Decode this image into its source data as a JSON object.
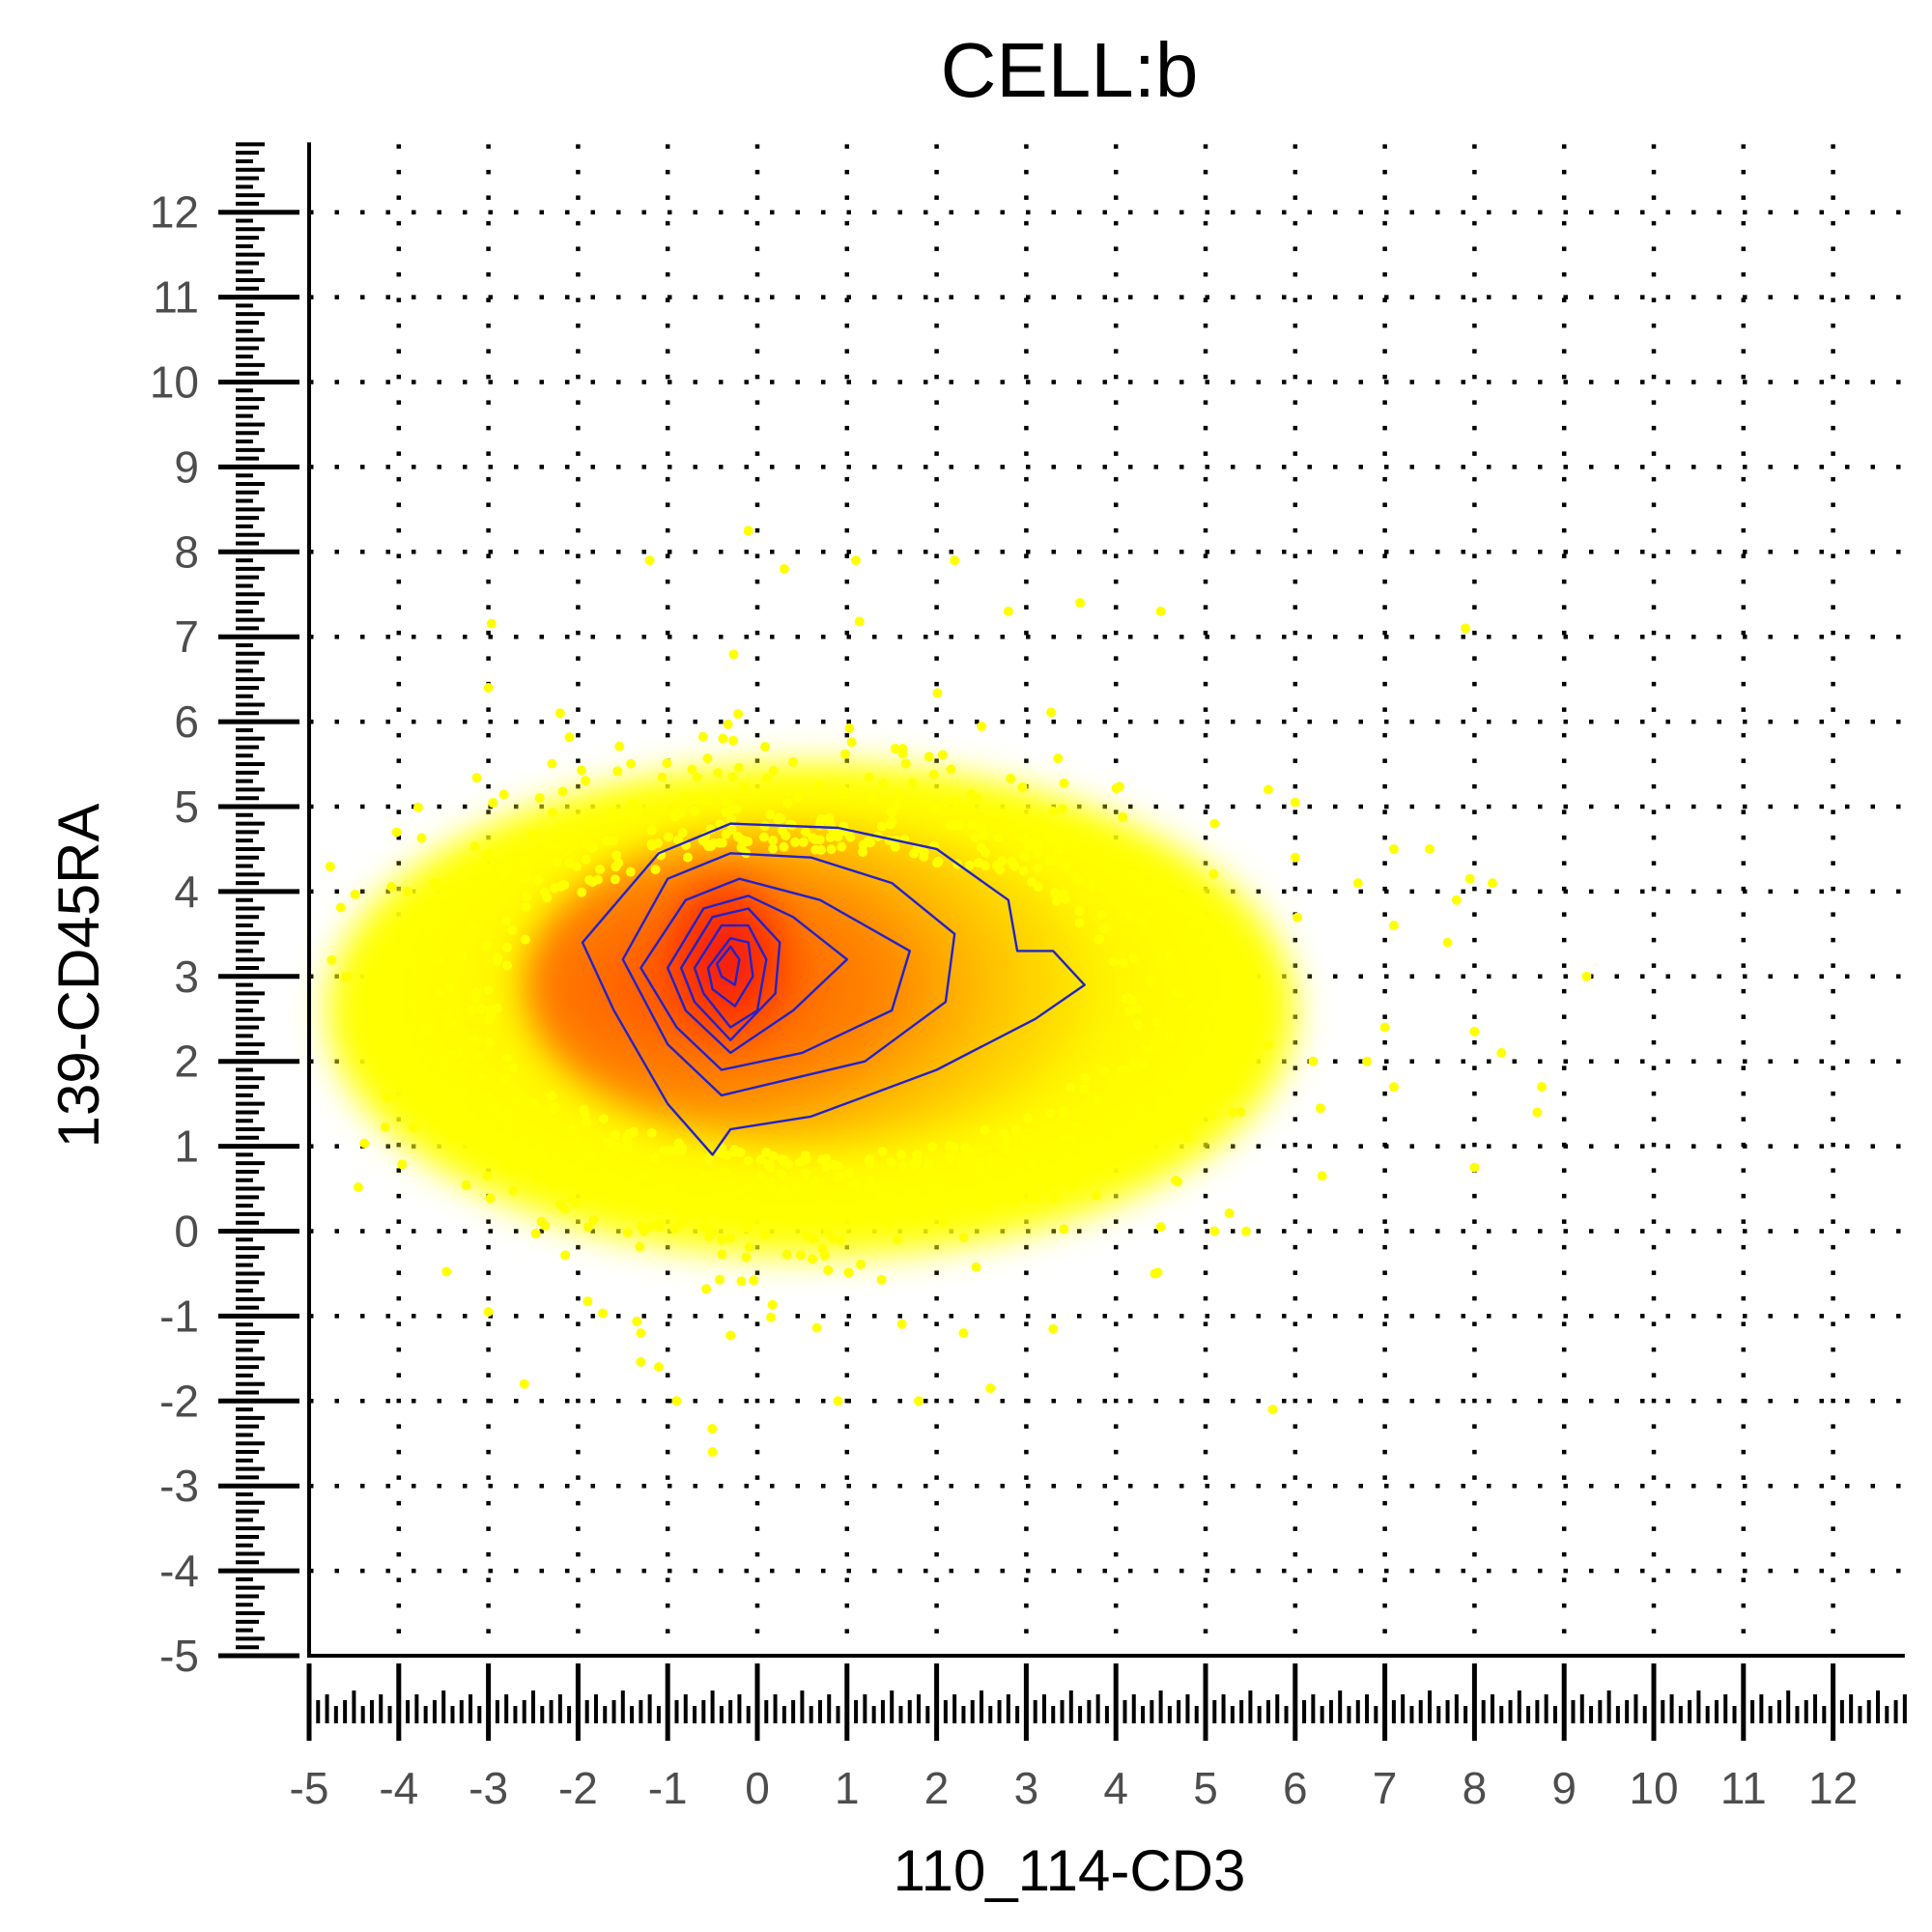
{
  "chart_data": {
    "type": "scatter",
    "subtype": "density scatter with contour lines",
    "title": "CELL:b",
    "xlabel": "110_114-CD3",
    "ylabel": "139-CD45RA",
    "xlim": [
      -5,
      12.8
    ],
    "ylim": [
      -5,
      12.8
    ],
    "x_ticks": [
      -5,
      -4,
      -3,
      -2,
      -1,
      0,
      1,
      2,
      3,
      4,
      5,
      6,
      7,
      8,
      9,
      10,
      11,
      12
    ],
    "y_ticks": [
      -5,
      -4,
      -3,
      -2,
      -1,
      0,
      1,
      2,
      3,
      4,
      5,
      6,
      7,
      8,
      9,
      10,
      11,
      12
    ],
    "grid": "dotted",
    "rug": true,
    "legend": "none",
    "colors": {
      "point_low_density": "#ffff00",
      "point_mid_density": "#ffa500",
      "point_high_density": "#ff0000",
      "contour": "#2222cc",
      "grid": "#000000"
    },
    "density_peak": {
      "x": -0.35,
      "y": 3.2
    },
    "outlier_points": [
      [
        7.9,
        7.1
      ],
      [
        9.25,
        3.0
      ],
      [
        8.7,
        1.4
      ],
      [
        8.75,
        1.7
      ],
      [
        8.3,
        2.1
      ],
      [
        8.0,
        0.75
      ],
      [
        8.0,
        2.35
      ],
      [
        7.7,
        3.4
      ],
      [
        7.8,
        3.9
      ],
      [
        8.2,
        4.1
      ],
      [
        7.95,
        4.15
      ],
      [
        7.1,
        4.5
      ],
      [
        7.5,
        4.5
      ],
      [
        6.7,
        4.1
      ],
      [
        7.1,
        3.6
      ],
      [
        7.0,
        2.4
      ],
      [
        6.8,
        2.0
      ],
      [
        7.1,
        1.7
      ],
      [
        6.3,
        0.65
      ],
      [
        5.75,
        -2.1
      ],
      [
        6.2,
        2.0
      ],
      [
        6.0,
        5.05
      ],
      [
        5.7,
        5.2
      ],
      [
        6.0,
        4.4
      ],
      [
        5.1,
        4.8
      ],
      [
        4.5,
        7.3
      ],
      [
        3.6,
        7.4
      ],
      [
        2.8,
        7.3
      ],
      [
        2.2,
        7.9
      ],
      [
        1.1,
        7.9
      ],
      [
        -1.2,
        7.9
      ],
      [
        -0.1,
        8.25
      ],
      [
        0.3,
        7.8
      ],
      [
        -2.2,
        6.1
      ],
      [
        -3.0,
        6.4
      ],
      [
        -3.6,
        4.1
      ],
      [
        -3.9,
        4.0
      ],
      [
        -2.6,
        -1.8
      ],
      [
        -3.0,
        -0.95
      ],
      [
        -0.5,
        -2.6
      ],
      [
        -0.9,
        -2.0
      ],
      [
        0.9,
        -2.0
      ],
      [
        1.8,
        -2.0
      ],
      [
        2.6,
        -1.85
      ],
      [
        3.3,
        -1.15
      ],
      [
        2.3,
        -1.2
      ],
      [
        -1.1,
        -1.6
      ],
      [
        -1.3,
        -1.2
      ],
      [
        4.5,
        0.05
      ],
      [
        5.1,
        0.0
      ],
      [
        4.8,
        1.1
      ],
      [
        5.3,
        1.4
      ],
      [
        -3.5,
        2.0
      ],
      [
        -3.6,
        1.3
      ]
    ]
  }
}
